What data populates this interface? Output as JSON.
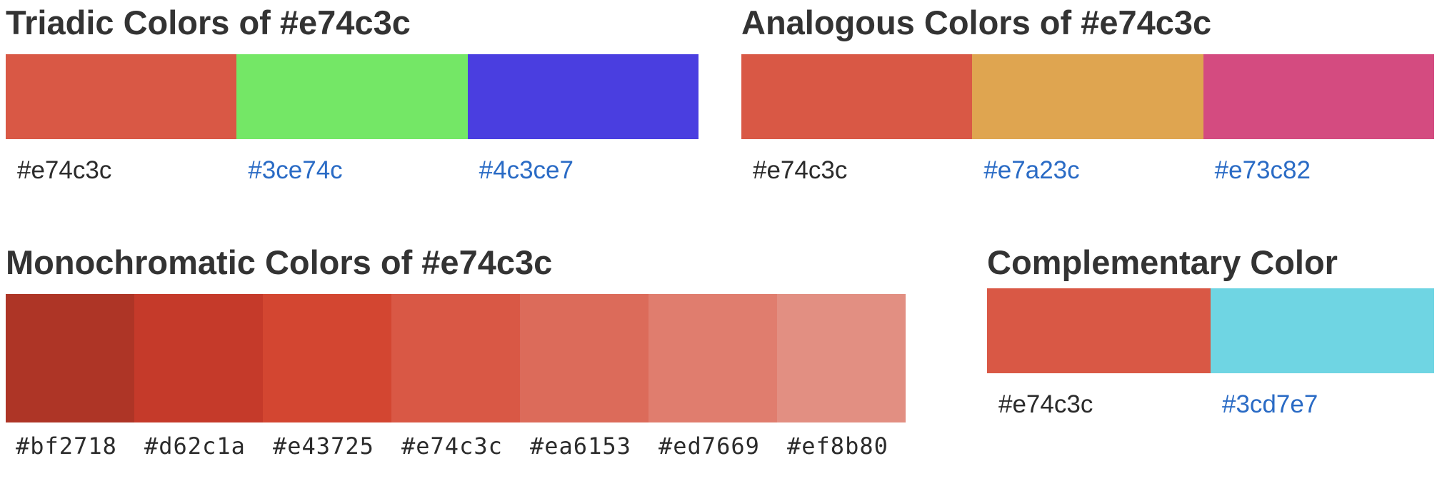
{
  "triadic": {
    "title": "Triadic Colors of #e74c3c",
    "swatches": [
      "#d95845",
      "#74e766",
      "#4a3ee0"
    ],
    "labels": [
      "#e74c3c",
      "#3ce74c",
      "#4c3ce7"
    ]
  },
  "analogous": {
    "title": "Analogous Colors of #e74c3c",
    "swatches": [
      "#d95845",
      "#dfa550",
      "#d44b80"
    ],
    "labels": [
      "#e74c3c",
      "#e7a23c",
      "#e73c82"
    ]
  },
  "monochromatic": {
    "title": "Monochromatic Colors of #e74c3c",
    "swatches": [
      "#ae3526",
      "#c53a2a",
      "#d34631",
      "#d95845",
      "#dc6b5a",
      "#e07d6e",
      "#e28f82"
    ],
    "labels": [
      "#bf2718",
      "#d62c1a",
      "#e43725",
      "#e74c3c",
      "#ea6153",
      "#ed7669",
      "#ef8b80"
    ]
  },
  "complementary": {
    "title": "Complementary Color",
    "swatches": [
      "#d95845",
      "#6fd5e3"
    ],
    "labels": [
      "#e74c3c",
      "#3cd7e7"
    ]
  }
}
